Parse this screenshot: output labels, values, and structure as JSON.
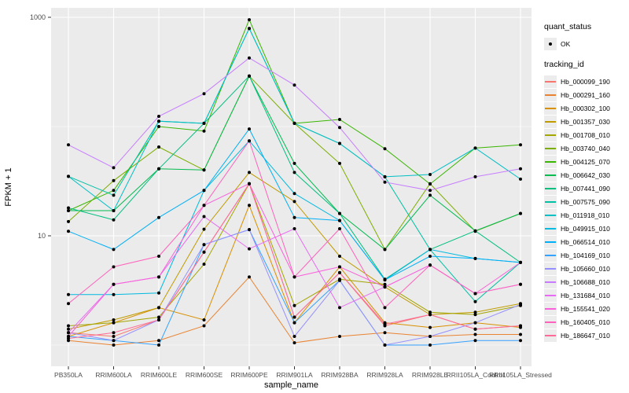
{
  "ui": {
    "legend": {
      "quant_status_title": "quant_status",
      "quant_status_value": "OK",
      "tracking_title": "tracking_id"
    }
  },
  "chart_data": {
    "type": "line",
    "title": "",
    "xlabel": "sample_name",
    "ylabel": "FPKM + 1",
    "y_scale": "log10",
    "ylim": [
      0.6,
      1400
    ],
    "y_major_ticks": [
      {
        "value": 1000,
        "label": "1000"
      },
      {
        "value": 10,
        "label": "10"
      }
    ],
    "y_minor_gridlines": [
      100,
      1
    ],
    "grid": true,
    "panel_background": "#ebebeb",
    "gridline_color": "#ffffff",
    "point_color": "#000000",
    "legend_position": "right",
    "quant_status": {
      "title": "quant_status",
      "levels": [
        {
          "label": "OK",
          "shape": "point"
        }
      ]
    },
    "categories": [
      "PB350LA",
      "RRIM600LA",
      "RRIM600LE",
      "RRIM600SE",
      "RRIM600PE",
      "RRIM901LA",
      "RRIM928BA",
      "RRIM928LA",
      "RRIM928LE",
      "RRII105LA_Control",
      "RRII105LA_Stressed"
    ],
    "series": [
      {
        "name": "Hb_000099_190",
        "color": "#F8766D",
        "values": [
          1.3,
          1.2,
          1.7,
          7.1,
          30,
          1.8,
          4.6,
          1.5,
          1.9,
          1.4,
          1.5
        ]
      },
      {
        "name": "Hb_000291_160",
        "color": "#EA8331",
        "values": [
          1.1,
          1.0,
          1.1,
          1.5,
          4.2,
          1.05,
          1.2,
          1.3,
          1.2,
          1.25,
          1.25
        ]
      },
      {
        "name": "Hb_000302_100",
        "color": "#D89000",
        "values": [
          1.2,
          1.6,
          2.2,
          1.7,
          19,
          1.6,
          5.2,
          1.6,
          1.45,
          1.6,
          1.45
        ]
      },
      {
        "name": "Hb_001357_030",
        "color": "#C09B00",
        "values": [
          1.4,
          1.7,
          2.2,
          11.5,
          38,
          20.6,
          6.5,
          3.4,
          1.9,
          2.0,
          2.4
        ]
      },
      {
        "name": "Hb_001708_010",
        "color": "#A3A500",
        "values": [
          1.5,
          1.6,
          1.8,
          5.5,
          30,
          2.3,
          4.0,
          3.6,
          2.0,
          1.9,
          2.3
        ]
      },
      {
        "name": "Hb_003740_040",
        "color": "#7CAE00",
        "values": [
          13.5,
          32,
          65,
          40,
          290,
          107,
          46,
          7.5,
          30,
          11,
          16
        ]
      },
      {
        "name": "Hb_004125_070",
        "color": "#39B600",
        "values": [
          17,
          26,
          100,
          91,
          950,
          107,
          116,
          62.7,
          29.8,
          63.5,
          68
        ]
      },
      {
        "name": "Hb_006642_030",
        "color": "#00BB4E",
        "values": [
          17,
          17,
          41,
          40,
          290,
          46,
          16,
          7.5,
          23.5,
          11.1,
          16
        ]
      },
      {
        "name": "Hb_007441_090",
        "color": "#00BF7D",
        "values": [
          18,
          14,
          41,
          107,
          290,
          38,
          16,
          4.0,
          7.5,
          11.1,
          5.7
        ]
      },
      {
        "name": "Hb_007575_090",
        "color": "#00C1A3",
        "values": [
          35,
          23.5,
          112,
          107,
          790,
          107,
          70,
          34.7,
          7.5,
          2.5,
          5.7
        ]
      },
      {
        "name": "Hb_011918_010",
        "color": "#00BFC4",
        "values": [
          35,
          17,
          112,
          107,
          790,
          107,
          70,
          34.7,
          36.4,
          63.5,
          33
        ]
      },
      {
        "name": "Hb_049915_010",
        "color": "#00BAE0",
        "values": [
          2.9,
          2.9,
          3.0,
          26,
          74,
          24.4,
          13.8,
          3.95,
          7.5,
          6.2,
          5.7
        ]
      },
      {
        "name": "Hb_066514_010",
        "color": "#00B0F6",
        "values": [
          11,
          7.5,
          14.7,
          26,
          95,
          14.7,
          13.8,
          3.95,
          6.5,
          6.2,
          5.7
        ]
      },
      {
        "name": "Hb_104169_010",
        "color": "#35A2FF",
        "values": [
          1.2,
          1.1,
          1.0,
          8.3,
          11.4,
          1.6,
          3.9,
          1.0,
          1.0,
          1.1,
          1.1
        ]
      },
      {
        "name": "Hb_105660_010",
        "color": "#9590FF",
        "values": [
          1.3,
          1.1,
          1.7,
          8.3,
          11.4,
          1.2,
          3.9,
          1.0,
          1.2,
          1.6,
          2.35
        ]
      },
      {
        "name": "Hb_106688_010",
        "color": "#C77CFF",
        "values": [
          68,
          42,
          124,
          200,
          425,
          240,
          98,
          31,
          26,
          34.7,
          41
        ]
      },
      {
        "name": "Hb_131684_010",
        "color": "#E76BF3",
        "values": [
          1.3,
          3.6,
          4.2,
          15,
          7.6,
          11.6,
          2.2,
          3.4,
          5.4,
          2.96,
          3.6
        ]
      },
      {
        "name": "Hb_155541_020",
        "color": "#FA62DB",
        "values": [
          1.2,
          3.6,
          4.2,
          19,
          30,
          4.2,
          5.2,
          3.4,
          5.4,
          2.96,
          5.7
        ]
      },
      {
        "name": "Hb_160405_010",
        "color": "#FF62BC",
        "values": [
          2.4,
          5.2,
          6.5,
          19,
          74,
          4.2,
          11.6,
          2.2,
          5.4,
          2.96,
          3.6
        ]
      },
      {
        "name": "Hb_186647_010",
        "color": "#FF6A98",
        "values": [
          1.15,
          1.3,
          1.7,
          7.1,
          30,
          1.8,
          4.6,
          1.55,
          1.9,
          1.4,
          1.5
        ]
      }
    ]
  }
}
